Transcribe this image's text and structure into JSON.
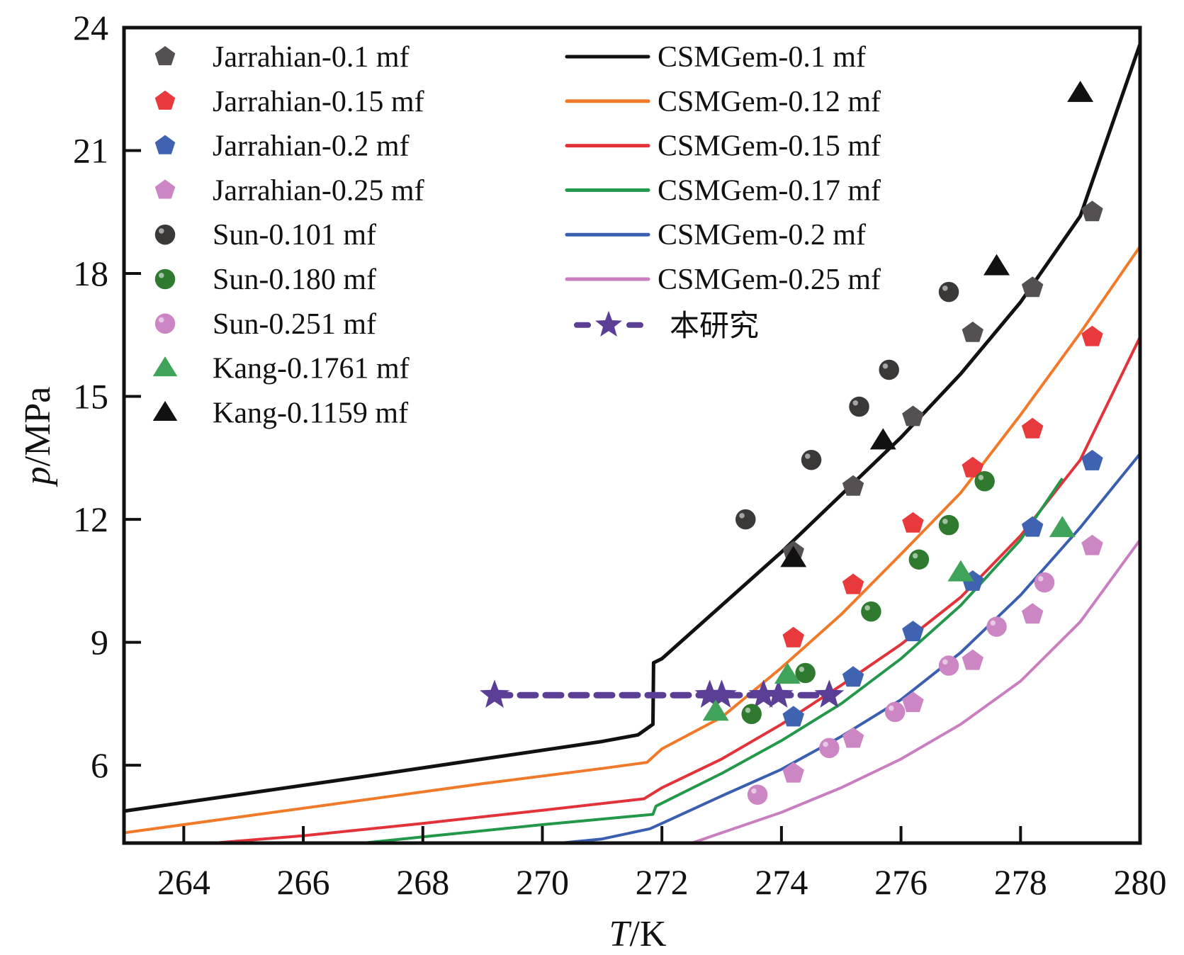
{
  "chart_data": {
    "type": "scatter",
    "title": "",
    "xlabel": "T/K",
    "xlabel_italic": "T",
    "xlabel_unit": "/K",
    "ylabel": "p/MPa",
    "ylabel_italic": "p",
    "ylabel_unit": "/MPa",
    "xlim": [
      263,
      280
    ],
    "ylim": [
      4.1,
      24
    ],
    "xticks": [
      264,
      266,
      268,
      270,
      272,
      274,
      276,
      278,
      280
    ],
    "yticks": [
      6,
      9,
      12,
      15,
      18,
      21,
      24
    ],
    "grid": false,
    "legend": "top-left, two columns",
    "series": [
      {
        "name": "Jarrahian-0.1 mf",
        "kind": "points",
        "marker": "pentagon",
        "color": "#555152",
        "x": [
          274.2,
          275.2,
          276.2,
          277.2,
          278.2,
          279.2
        ],
        "y": [
          11.2,
          12.8,
          14.5,
          16.55,
          17.65,
          19.5
        ]
      },
      {
        "name": "Jarrahian-0.15 mf",
        "kind": "points",
        "marker": "pentagon",
        "color": "#e8393d",
        "x": [
          274.2,
          275.2,
          276.2,
          277.2,
          278.2,
          279.2
        ],
        "y": [
          9.1,
          10.4,
          11.9,
          13.25,
          14.2,
          16.45
        ]
      },
      {
        "name": "Jarrahian-0.2 mf",
        "kind": "points",
        "marker": "pentagon",
        "color": "#3f63b0",
        "x": [
          274.2,
          275.2,
          276.2,
          277.2,
          278.2,
          279.2
        ],
        "y": [
          7.17,
          8.14,
          9.25,
          10.48,
          11.8,
          13.42
        ]
      },
      {
        "name": "Jarrahian-0.25 mf",
        "kind": "points",
        "marker": "pentagon",
        "color": "#cc86c4",
        "x": [
          274.2,
          275.2,
          276.2,
          277.2,
          278.2,
          279.2
        ],
        "y": [
          5.8,
          6.65,
          7.52,
          8.55,
          9.68,
          11.35
        ]
      },
      {
        "name": "Sun-0.101 mf",
        "kind": "points",
        "marker": "sphere",
        "color": "#3b3838",
        "x": [
          273.4,
          274.5,
          275.3,
          275.8,
          276.8
        ],
        "y": [
          12.0,
          13.45,
          14.75,
          15.65,
          17.55
        ]
      },
      {
        "name": "Sun-0.180 mf",
        "kind": "points",
        "marker": "sphere",
        "color": "#2f7a2f",
        "x": [
          273.5,
          274.4,
          275.5,
          276.3,
          276.8,
          277.4
        ],
        "y": [
          7.25,
          8.25,
          9.75,
          11.02,
          11.86,
          12.93
        ]
      },
      {
        "name": "Sun-0.251 mf",
        "kind": "points",
        "marker": "sphere",
        "color": "#cc86c4",
        "x": [
          273.6,
          274.8,
          275.9,
          276.8,
          277.6,
          278.4
        ],
        "y": [
          5.28,
          6.42,
          7.3,
          8.43,
          9.38,
          10.46
        ]
      },
      {
        "name": "Kang-0.1761 mf",
        "kind": "points",
        "marker": "triangle",
        "color": "#3fa35a",
        "x": [
          272.9,
          274.1,
          277.0,
          278.7
        ],
        "y": [
          7.3,
          8.2,
          10.7,
          11.78
        ]
      },
      {
        "name": "Kang-0.1159 mf",
        "kind": "points",
        "marker": "triangle",
        "color": "#111111",
        "x": [
          274.2,
          275.7,
          277.6,
          279.0
        ],
        "y": [
          11.05,
          13.92,
          18.17,
          22.4
        ]
      },
      {
        "name": "CSMGem-0.1 mf",
        "kind": "line",
        "color": "#111111",
        "x": [
          263.0,
          265,
          267,
          269,
          271,
          271.6,
          271.85,
          271.86,
          272.0,
          273,
          274,
          275,
          276,
          277,
          278,
          279,
          280
        ],
        "y": [
          4.88,
          5.3,
          5.72,
          6.15,
          6.58,
          6.74,
          7.0,
          8.5,
          8.6,
          9.9,
          11.2,
          12.6,
          14.0,
          15.55,
          17.3,
          19.4,
          23.6
        ]
      },
      {
        "name": "CSMGem-0.12 mf",
        "kind": "line",
        "color": "#f07a2a",
        "x": [
          263.0,
          265,
          267,
          269,
          271,
          271.75,
          272.0,
          273,
          274,
          275,
          276,
          277,
          278,
          279,
          280
        ],
        "y": [
          4.35,
          4.75,
          5.15,
          5.55,
          5.92,
          6.07,
          6.4,
          7.17,
          8.38,
          9.68,
          11.15,
          12.65,
          14.55,
          16.55,
          18.66
        ]
      },
      {
        "name": "CSMGem-0.15 mf",
        "kind": "line",
        "color": "#e3333a",
        "x": [
          264.5,
          266,
          268,
          270,
          271.7,
          272.0,
          273,
          274,
          275,
          276,
          277,
          278,
          279,
          280
        ],
        "y": [
          4.1,
          4.28,
          4.58,
          4.9,
          5.18,
          5.45,
          6.15,
          7.0,
          7.95,
          8.95,
          10.1,
          11.6,
          13.45,
          16.45
        ]
      },
      {
        "name": "CSMGem-0.17 mf",
        "kind": "line",
        "color": "#24984a",
        "x": [
          267.0,
          268,
          270,
          271.85,
          271.9,
          273,
          274,
          275,
          276,
          277,
          278,
          278.7
        ],
        "y": [
          4.1,
          4.25,
          4.55,
          4.8,
          5.0,
          5.8,
          6.6,
          7.5,
          8.6,
          9.9,
          11.5,
          13.0
        ]
      },
      {
        "name": "CSMGem-0.2 mf",
        "kind": "line",
        "color": "#3b5fb0",
        "x": [
          270.3,
          271,
          271.8,
          272.0,
          273,
          274,
          275,
          276,
          277,
          278,
          279,
          280
        ],
        "y": [
          4.1,
          4.2,
          4.45,
          4.58,
          5.25,
          5.9,
          6.7,
          7.6,
          8.75,
          10.15,
          11.8,
          13.6
        ]
      },
      {
        "name": "CSMGem-0.25 mf",
        "kind": "line",
        "color": "#c97ec0",
        "x": [
          272.5,
          273,
          274,
          275,
          276,
          277,
          278,
          279,
          280
        ],
        "y": [
          4.1,
          4.35,
          4.85,
          5.45,
          6.15,
          7.0,
          8.05,
          9.5,
          11.5
        ]
      },
      {
        "name": "本研究",
        "kind": "dashed-star",
        "color": "#5b3f96",
        "x": [
          269.2,
          272.8,
          273.0,
          273.7,
          273.95,
          274.8
        ],
        "y": [
          7.71,
          7.71,
          7.71,
          7.71,
          7.71,
          7.71
        ]
      }
    ]
  }
}
